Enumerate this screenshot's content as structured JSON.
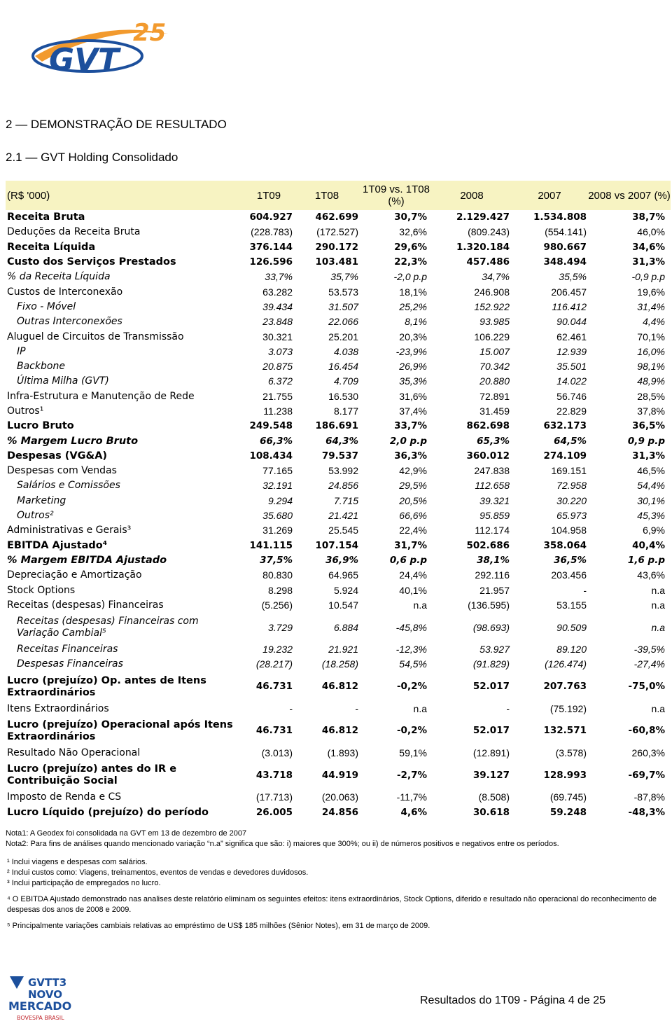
{
  "logo": {
    "anniversary": "25",
    "mark": "GVT"
  },
  "headings": [
    "2 — DEMONSTRAÇÃO DE RESULTADO",
    "2.1 — GVT Holding Consolidado"
  ],
  "table": {
    "header": [
      "(R$ '000)",
      "1T09",
      "1T08",
      "1T09 vs. 1T08 (%)",
      "2008",
      "2007",
      "2008 vs 2007 (%)"
    ],
    "rows": [
      {
        "label": "Receita Bruta",
        "cells": [
          "604.927",
          "462.699",
          "30,7%",
          "2.129.427",
          "1.534.808",
          "38,7%"
        ]
      },
      {
        "label": "Deduções da Receita Bruta",
        "cells": [
          "(228.783)",
          "(172.527)",
          "32,6%",
          "(809.243)",
          "(554.141)",
          "46,0%"
        ]
      },
      {
        "label": "Receita Líquida",
        "cells": [
          "376.144",
          "290.172",
          "29,6%",
          "1.320.184",
          "980.667",
          "34,6%"
        ]
      },
      {
        "label": "Custo dos Serviços Prestados",
        "cells": [
          "126.596",
          "103.481",
          "22,3%",
          "457.486",
          "348.494",
          "31,3%"
        ]
      },
      {
        "label": "% da Receita Líquida",
        "cells": [
          "33,7%",
          "35,7%",
          "-2,0 p.p",
          "34,7%",
          "35,5%",
          "-0,9 p.p"
        ]
      },
      {
        "label": "Custos de Interconexão",
        "cells": [
          "63.282",
          "53.573",
          "18,1%",
          "246.908",
          "206.457",
          "19,6%"
        ]
      },
      {
        "label": "Fixo - Móvel",
        "cells": [
          "39.434",
          "31.507",
          "25,2%",
          "152.922",
          "116.412",
          "31,4%"
        ]
      },
      {
        "label": "Outras Interconexões",
        "cells": [
          "23.848",
          "22.066",
          "8,1%",
          "93.985",
          "90.044",
          "4,4%"
        ]
      },
      {
        "label": "Aluguel de Circuitos de Transmissão",
        "cells": [
          "30.321",
          "25.201",
          "20,3%",
          "106.229",
          "62.461",
          "70,1%"
        ]
      },
      {
        "label": "IP",
        "cells": [
          "3.073",
          "4.038",
          "-23,9%",
          "15.007",
          "12.939",
          "16,0%"
        ]
      },
      {
        "label": "Backbone",
        "cells": [
          "20.875",
          "16.454",
          "26,9%",
          "70.342",
          "35.501",
          "98,1%"
        ]
      },
      {
        "label": "Última Milha (GVT)",
        "cells": [
          "6.372",
          "4.709",
          "35,3%",
          "20.880",
          "14.022",
          "48,9%"
        ]
      },
      {
        "label": "Infra-Estrutura e Manutenção de Rede",
        "cells": [
          "21.755",
          "16.530",
          "31,6%",
          "72.891",
          "56.746",
          "28,5%"
        ]
      },
      {
        "label": "Outros¹",
        "cells": [
          "11.238",
          "8.177",
          "37,4%",
          "31.459",
          "22.829",
          "37,8%"
        ]
      },
      {
        "label": "Lucro Bruto",
        "cells": [
          "249.548",
          "186.691",
          "33,7%",
          "862.698",
          "632.173",
          "36,5%"
        ]
      },
      {
        "label": "% Margem Lucro Bruto",
        "cells": [
          "66,3%",
          "64,3%",
          "2,0 p.p",
          "65,3%",
          "64,5%",
          "0,9 p.p"
        ]
      },
      {
        "label": "Despesas (VG&A)",
        "cells": [
          "108.434",
          "79.537",
          "36,3%",
          "360.012",
          "274.109",
          "31,3%"
        ]
      },
      {
        "label": "Despesas com Vendas",
        "cells": [
          "77.165",
          "53.992",
          "42,9%",
          "247.838",
          "169.151",
          "46,5%"
        ]
      },
      {
        "label": "Salários e Comissões",
        "cells": [
          "32.191",
          "24.856",
          "29,5%",
          "112.658",
          "72.958",
          "54,4%"
        ]
      },
      {
        "label": "Marketing",
        "cells": [
          "9.294",
          "7.715",
          "20,5%",
          "39.321",
          "30.220",
          "30,1%"
        ]
      },
      {
        "label": "Outros²",
        "cells": [
          "35.680",
          "21.421",
          "66,6%",
          "95.859",
          "65.973",
          "45,3%"
        ]
      },
      {
        "label": "Administrativas e Gerais³",
        "cells": [
          "31.269",
          "25.545",
          "22,4%",
          "112.174",
          "104.958",
          "6,9%"
        ]
      },
      {
        "label": "EBITDA Ajustado⁴",
        "cells": [
          "141.115",
          "107.154",
          "31,7%",
          "502.686",
          "358.064",
          "40,4%"
        ]
      },
      {
        "label": "% Margem EBITDA Ajustado",
        "cells": [
          "37,5%",
          "36,9%",
          "0,6 p.p",
          "38,1%",
          "36,5%",
          "1,6 p.p"
        ]
      },
      {
        "label": "Depreciação e Amortização",
        "cells": [
          "80.830",
          "64.965",
          "24,4%",
          "292.116",
          "203.456",
          "43,6%"
        ]
      },
      {
        "label": "Stock Options",
        "cells": [
          "8.298",
          "5.924",
          "40,1%",
          "21.957",
          "-",
          "n.a"
        ]
      },
      {
        "label": "Receitas (despesas) Financeiras",
        "cells": [
          "(5.256)",
          "10.547",
          "n.a",
          "(136.595)",
          "53.155",
          "n.a"
        ]
      },
      {
        "label": "Receitas (despesas) Financeiras com Variação Cambial⁵",
        "cells": [
          "3.729",
          "6.884",
          "-45,8%",
          "(98.693)",
          "90.509",
          "n.a"
        ]
      },
      {
        "label": "Receitas Financeiras",
        "cells": [
          "19.232",
          "21.921",
          "-12,3%",
          "53.927",
          "89.120",
          "-39,5%"
        ]
      },
      {
        "label": "Despesas Financeiras",
        "cells": [
          "(28.217)",
          "(18.258)",
          "54,5%",
          "(91.829)",
          "(126.474)",
          "-27,4%"
        ]
      },
      {
        "label": "Lucro (prejuízo) Op. antes de Itens Extraordinários",
        "cells": [
          "46.731",
          "46.812",
          "-0,2%",
          "52.017",
          "207.763",
          "-75,0%"
        ]
      },
      {
        "label": "Itens Extraordinários",
        "cells": [
          "-",
          "-",
          "n.a",
          "-",
          "(75.192)",
          "n.a"
        ]
      },
      {
        "label": "Lucro (prejuízo) Operacional após Itens Extraordinários",
        "cells": [
          "46.731",
          "46.812",
          "-0,2%",
          "52.017",
          "132.571",
          "-60,8%"
        ]
      },
      {
        "label": "Resultado Não Operacional",
        "cells": [
          "(3.013)",
          "(1.893)",
          "59,1%",
          "(12.891)",
          "(3.578)",
          "260,3%"
        ]
      },
      {
        "label": "Lucro (prejuízo) antes do IR e Contribuição Social",
        "cells": [
          "43.718",
          "44.919",
          "-2,7%",
          "39.127",
          "128.993",
          "-69,7%"
        ]
      },
      {
        "label": "Imposto de Renda e CS",
        "cells": [
          "(17.713)",
          "(20.063)",
          "-11,7%",
          "(8.508)",
          "(69.745)",
          "-87,8%"
        ]
      },
      {
        "label": "Lucro Líquido (prejuízo) do período",
        "cells": [
          "26.005",
          "24.856",
          "4,6%",
          "30.618",
          "59.248",
          "-48,3%"
        ]
      }
    ]
  },
  "notes": [
    "Nota1: A Geodex foi consolidada na GVT em 13 de dezembro de 2007",
    "Nota2: Para fins de análises quando mencionado variação “n.a” significa que são: i) maiores que 300%; ou ii) de números positivos e negativos entre os períodos."
  ],
  "footnotes": [
    "¹ Inclui viagens e despesas com salários.",
    "² Inclui custos como: Viagens, treinamentos, eventos de vendas e devedores duvidosos.",
    "³ Inclui participação de empregados no lucro.",
    "⁴ O EBITDA Ajustado demonstrado nas analises deste relatório eliminam os seguintes efeitos: itens extraordinários, Stock Options, diferido e resultado não operacional do reconhecimento de despesas dos anos de 2008 e 2009.",
    "⁵ Principalmente variações cambiais relativas ao empréstimo de US$ 185 milhões (Sênior Notes), em 31 de março de 2009."
  ],
  "bottom_logo": {
    "ticker": "GVTT3",
    "segment": [
      "NOVO",
      "MERCADO"
    ],
    "exchange": "BOVESPA BRASIL"
  },
  "footer": "Resultados do 1T09 - Página 4 de 25"
}
